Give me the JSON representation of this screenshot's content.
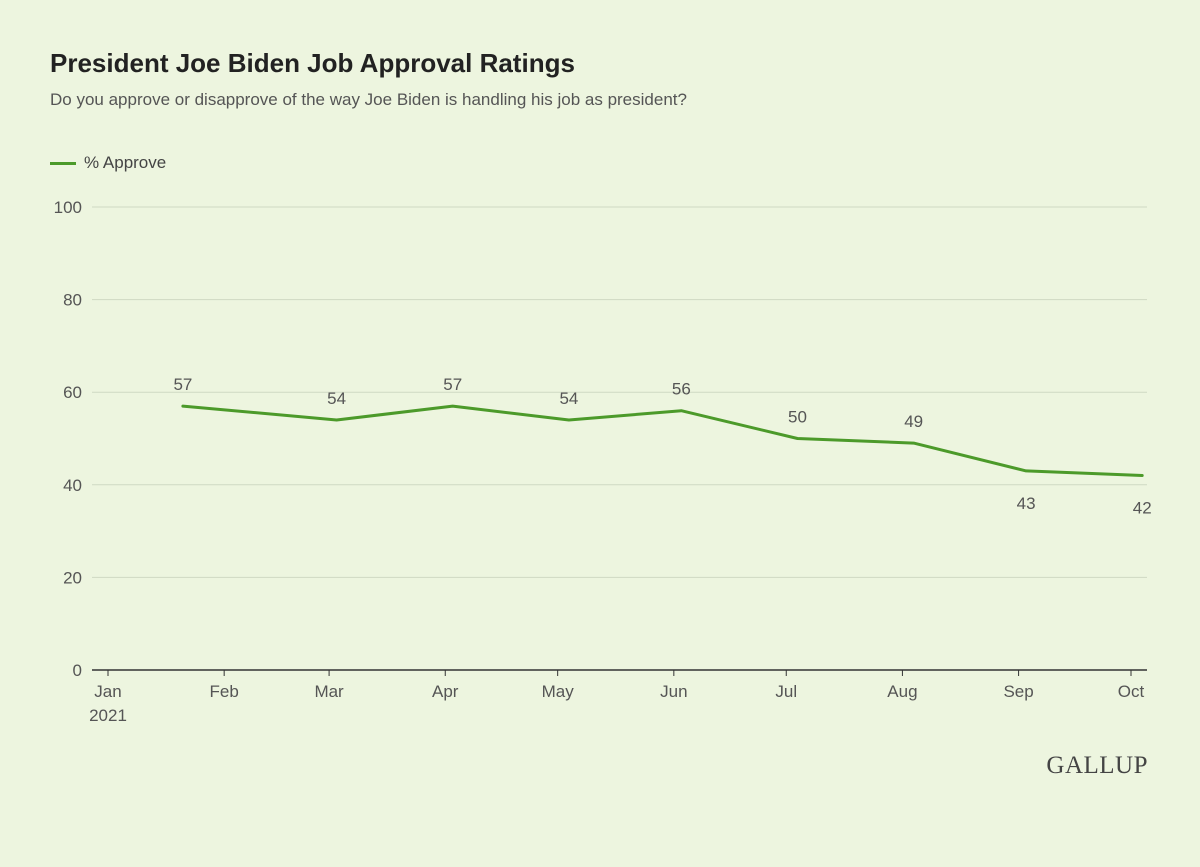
{
  "header": {
    "title": "President Joe Biden Job Approval Ratings",
    "subtitle": "Do you approve or disapprove of the way Joe Biden is handling his job as president?"
  },
  "legend": {
    "label": "% Approve"
  },
  "logo": {
    "text": "GALLUP"
  },
  "colors": {
    "background": "#edf5df",
    "line": "#4c9a2a",
    "grid": "#cfd9c3",
    "axis": "#333333"
  },
  "chart_data": {
    "type": "line",
    "title": "President Joe Biden Job Approval Ratings",
    "subtitle": "Do you approve or disapprove of the way Joe Biden is handling his job as president?",
    "ylim": [
      0,
      100
    ],
    "yticks": [
      0,
      20,
      40,
      60,
      80,
      100
    ],
    "grid": true,
    "legend_position": "top-left",
    "xticks": [
      {
        "date": "2021-01-01",
        "label": "Jan",
        "label2": "2021"
      },
      {
        "date": "2021-02-01",
        "label": "Feb"
      },
      {
        "date": "2021-03-01",
        "label": "Mar"
      },
      {
        "date": "2021-04-01",
        "label": "Apr"
      },
      {
        "date": "2021-05-01",
        "label": "May"
      },
      {
        "date": "2021-06-01",
        "label": "Jun"
      },
      {
        "date": "2021-07-01",
        "label": "Jul"
      },
      {
        "date": "2021-08-01",
        "label": "Aug"
      },
      {
        "date": "2021-09-01",
        "label": "Sep"
      },
      {
        "date": "2021-10-01",
        "label": "Oct"
      }
    ],
    "series": [
      {
        "name": "% Approve",
        "points": [
          {
            "x": "2021-01-21",
            "y": 57
          },
          {
            "x": "2021-03-03",
            "y": 54
          },
          {
            "x": "2021-04-03",
            "y": 57
          },
          {
            "x": "2021-05-04",
            "y": 54
          },
          {
            "x": "2021-06-03",
            "y": 56
          },
          {
            "x": "2021-07-04",
            "y": 50
          },
          {
            "x": "2021-08-04",
            "y": 49
          },
          {
            "x": "2021-09-03",
            "y": 43
          },
          {
            "x": "2021-10-04",
            "y": 42
          }
        ]
      }
    ]
  }
}
